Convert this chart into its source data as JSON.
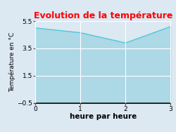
{
  "title": "Evolution de la température",
  "title_color": "#ff0000",
  "xlabel": "heure par heure",
  "ylabel": "Température en °C",
  "x_values": [
    0,
    1,
    2,
    3
  ],
  "y_values": [
    5.0,
    4.65,
    3.9,
    5.1
  ],
  "ylim": [
    -0.5,
    5.5
  ],
  "xlim": [
    0,
    3
  ],
  "xticks": [
    0,
    1,
    2,
    3
  ],
  "yticks": [
    -0.5,
    1.5,
    3.5,
    5.5
  ],
  "fill_color": "#add8e6",
  "line_color": "#4dc8d8",
  "background_color": "#dce8f2",
  "plot_bg_color": "#dce8f2",
  "grid_color": "#ffffff",
  "line_width": 1.0,
  "title_fontsize": 9,
  "label_fontsize": 6.5,
  "tick_fontsize": 6.5,
  "xlabel_fontsize": 7.5
}
